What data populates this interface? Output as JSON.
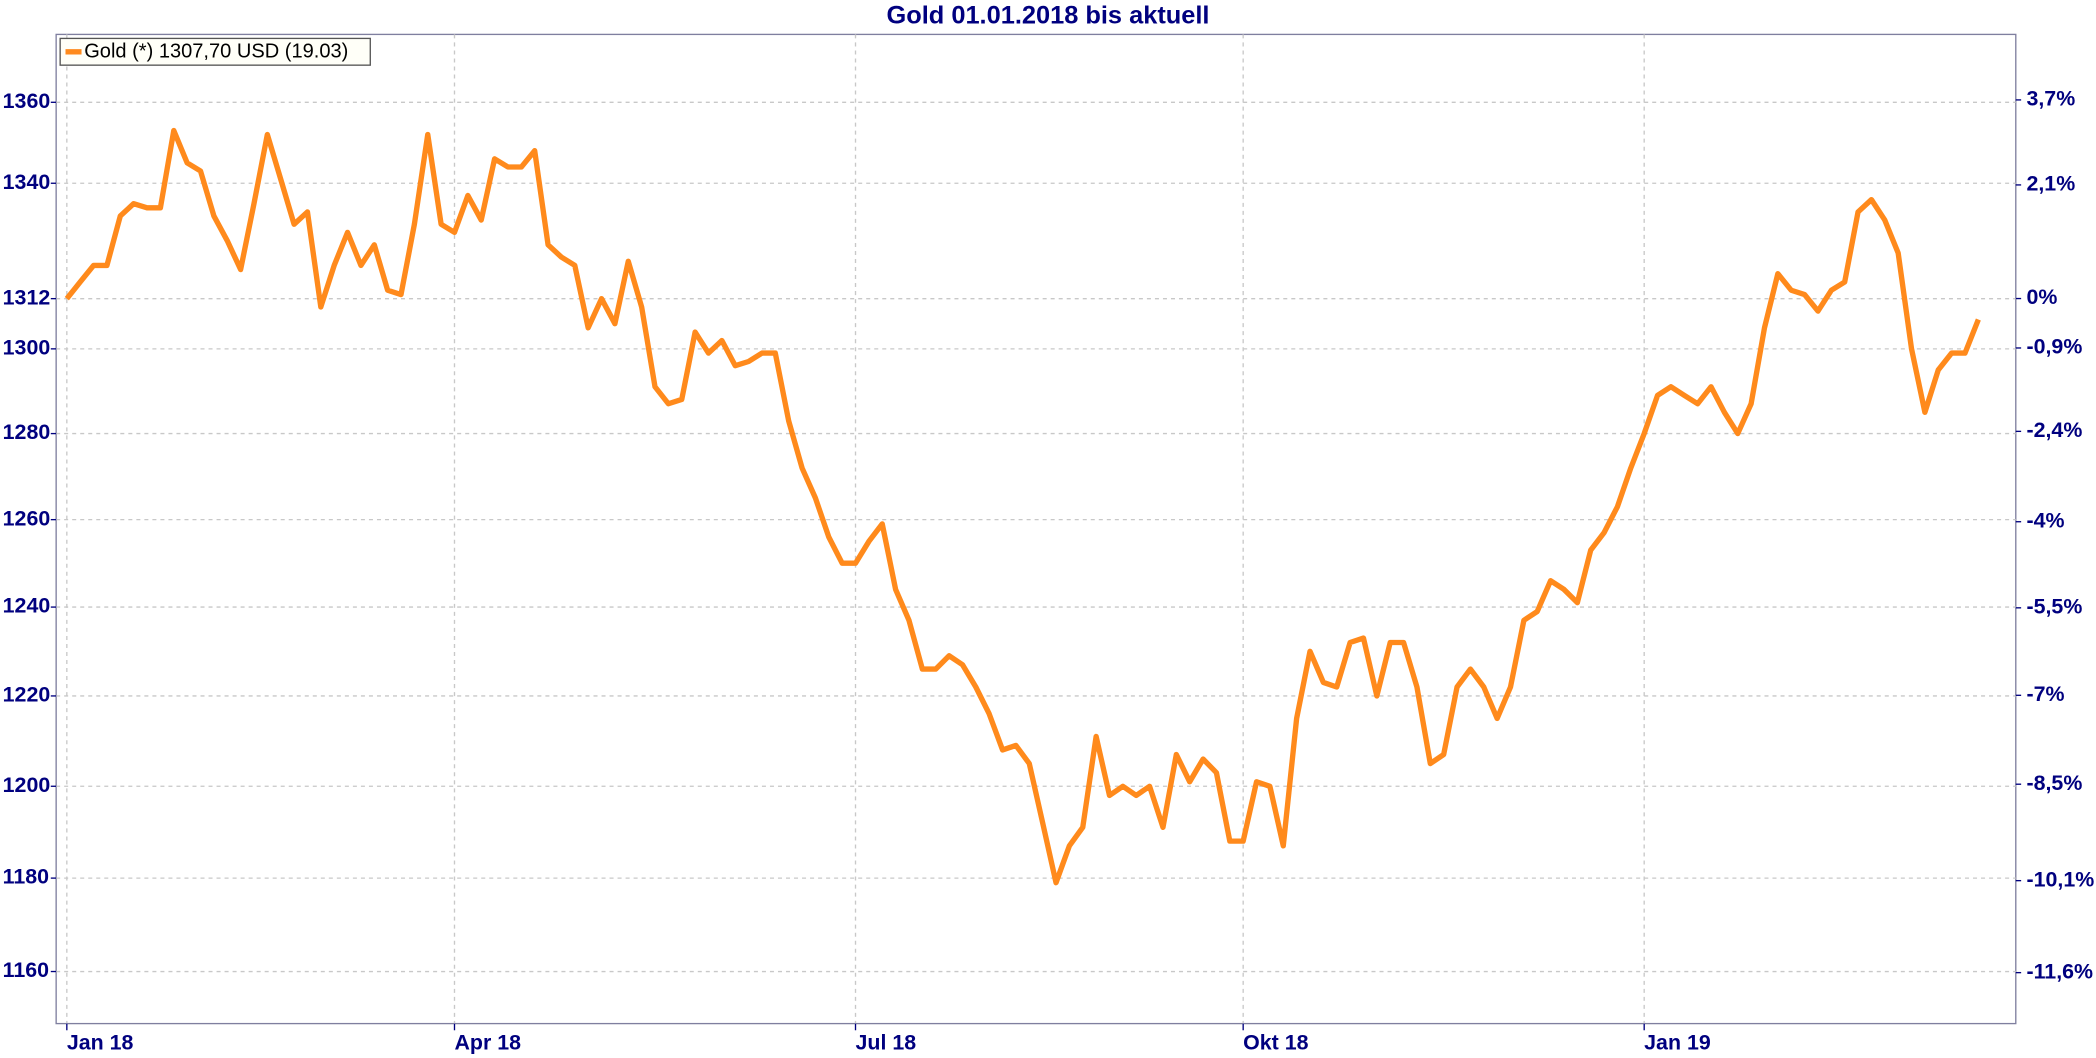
{
  "chart_data": {
    "type": "line",
    "title": "Gold 01.01.2018 bis aktuell",
    "categories": [
      "Jan 18",
      null,
      null,
      null,
      null,
      null,
      null,
      null,
      null,
      null,
      null,
      null,
      null,
      null,
      null,
      null,
      null,
      null,
      null,
      null,
      null,
      null,
      null,
      null,
      null,
      null,
      null,
      null,
      null,
      "Apr 18",
      null,
      null,
      null,
      null,
      null,
      null,
      null,
      null,
      null,
      null,
      null,
      null,
      null,
      null,
      null,
      null,
      null,
      null,
      null,
      null,
      null,
      null,
      null,
      null,
      null,
      null,
      null,
      null,
      null,
      "Jul 18",
      null,
      null,
      null,
      null,
      null,
      null,
      null,
      null,
      null,
      null,
      null,
      null,
      null,
      null,
      null,
      null,
      null,
      null,
      null,
      null,
      null,
      null,
      null,
      null,
      null,
      null,
      null,
      null,
      "Okt 18",
      null,
      null,
      null,
      null,
      null,
      null,
      null,
      null,
      null,
      null,
      null,
      null,
      null,
      null,
      null,
      null,
      null,
      null,
      null,
      null,
      null,
      null,
      null,
      null,
      null,
      null,
      null,
      null,
      null,
      "Jan 19",
      null,
      null,
      null,
      null,
      null,
      null,
      null,
      null,
      null,
      null,
      null,
      null,
      null,
      null,
      null,
      null,
      null,
      null,
      null,
      null,
      null,
      null,
      null,
      null,
      null
    ],
    "series": [
      {
        "name": "Gold (*) 1307,70 USD (19.03)",
        "color": "#ff8a1c",
        "values": [
          1312,
          1316,
          1320,
          1320,
          1332,
          1335,
          1334,
          1334,
          1353,
          1345,
          1343,
          1332,
          1326,
          1319,
          1335,
          1352,
          1341,
          1330,
          1333,
          1310,
          1320,
          1328,
          1320,
          1325,
          1314,
          1313,
          1330,
          1352,
          1330,
          1328,
          1337,
          1331,
          1346,
          1344,
          1344,
          1348,
          1325,
          1322,
          1320,
          1305,
          1312,
          1306,
          1321,
          1310,
          1291,
          1287,
          1288,
          1304,
          1299,
          1302,
          1296,
          1297,
          1299,
          1299,
          1283,
          1272,
          1265,
          1256,
          1250,
          1250,
          1255,
          1259,
          1244,
          1237,
          1226,
          1226,
          1229,
          1227,
          1222,
          1216,
          1208,
          1209,
          1205,
          1192,
          1179,
          1187,
          1191,
          1211,
          1198,
          1200,
          1198,
          1200,
          1191,
          1207,
          1201,
          1206,
          1203,
          1188,
          1188,
          1201,
          1200,
          1187,
          1215,
          1230,
          1223,
          1222,
          1232,
          1233,
          1220,
          1232,
          1232,
          1222,
          1205,
          1207,
          1222,
          1226,
          1222,
          1215,
          1222,
          1237,
          1239,
          1246,
          1244,
          1241,
          1253,
          1257,
          1263,
          1272,
          1280,
          1289,
          1291,
          1289,
          1287,
          1291,
          1285,
          1280,
          1287,
          1305,
          1318,
          1314,
          1313,
          1309,
          1314,
          1316,
          1333,
          1336,
          1331,
          1323,
          1300,
          1285,
          1295,
          1299,
          1299,
          1307
        ]
      }
    ],
    "ylim": [
      1149,
      1377
    ],
    "yticks": [
      1160,
      1180,
      1200,
      1220,
      1240,
      1260,
      1280,
      1300,
      1312,
      1340,
      1360
    ],
    "y_log": true,
    "y2lim": [
      -12.42,
      4.95
    ],
    "y2ticks": [
      {
        "value": 3.7,
        "label": "3,7%"
      },
      {
        "value": 2.1,
        "label": "2,1%"
      },
      {
        "value": 0,
        "label": "0%"
      },
      {
        "value": -0.9,
        "label": "-0,9%"
      },
      {
        "value": -2.4,
        "label": "-2,4%"
      },
      {
        "value": -4,
        "label": "-4%"
      },
      {
        "value": -5.5,
        "label": "-5,5%"
      },
      {
        "value": -7,
        "label": "-7%"
      },
      {
        "value": -8.5,
        "label": "-8,5%"
      },
      {
        "value": -10.1,
        "label": "-10,1%"
      },
      {
        "value": -11.6,
        "label": "-11,6%"
      }
    ],
    "grid": true,
    "legend": "top-left"
  }
}
